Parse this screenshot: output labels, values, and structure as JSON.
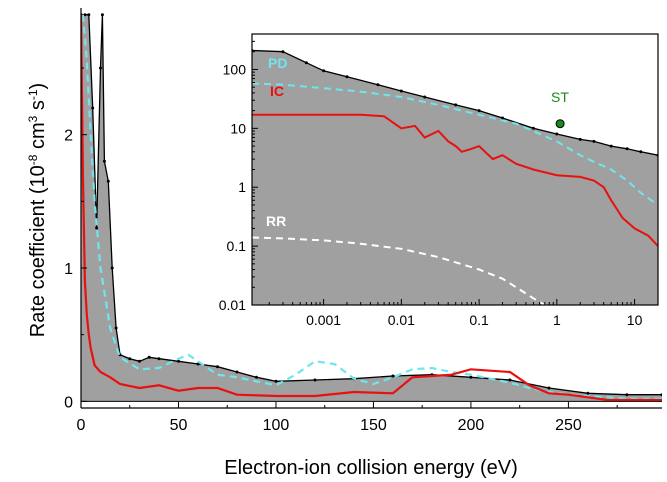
{
  "chart_data": [
    {
      "type": "line",
      "title": "",
      "xlabel": "Electron-ion collision energy (eV)",
      "ylabel": "Rate coefficient (10^-8 cm^3 s^-1)",
      "ylabel_parts": {
        "main": "Rate coefficient (10",
        "exp1": "-8",
        "mid1": " cm",
        "exp2": "3",
        "mid2": " s",
        "exp3": "-1",
        "end": ")"
      },
      "xlim": [
        0,
        298
      ],
      "ylim": [
        -0.05,
        2.95
      ],
      "x_ticks": [
        0,
        50,
        100,
        150,
        200,
        250
      ],
      "x_tick_labels": [
        "0",
        "50",
        "100",
        "150",
        "200",
        "250"
      ],
      "y_ticks": [
        0,
        1,
        2
      ],
      "y_tick_labels": [
        "0",
        "1",
        "2"
      ],
      "series": [
        {
          "role": "experiment",
          "style": "black line with markers, filled gray",
          "color": "#000000",
          "fill": "#a0a0a0",
          "x": [
            0,
            2,
            4,
            6,
            8,
            10,
            11,
            12,
            14,
            16,
            18,
            20,
            25,
            30,
            35,
            40,
            50,
            60,
            70,
            80,
            90,
            100,
            120,
            140,
            160,
            180,
            200,
            220,
            240,
            260,
            280,
            298
          ],
          "y": [
            2.9,
            2.9,
            2.9,
            2.2,
            1.3,
            2.5,
            2.9,
            1.8,
            1.65,
            1.0,
            0.55,
            0.35,
            0.32,
            0.3,
            0.33,
            0.32,
            0.3,
            0.28,
            0.26,
            0.22,
            0.18,
            0.15,
            0.16,
            0.17,
            0.19,
            0.2,
            0.18,
            0.16,
            0.1,
            0.06,
            0.05,
            0.05
          ]
        },
        {
          "name": "PD",
          "style": "dashed",
          "color": "#6ee6ee",
          "x": [
            1,
            3,
            5,
            7,
            10,
            15,
            20,
            30,
            40,
            50,
            55,
            60,
            70,
            80,
            90,
            100,
            110,
            120,
            130,
            140,
            150,
            160,
            170,
            180,
            190,
            200,
            210,
            220,
            230,
            240,
            250,
            260,
            270,
            280,
            298
          ],
          "y": [
            2.9,
            2.55,
            2.0,
            1.5,
            1.0,
            0.55,
            0.33,
            0.24,
            0.25,
            0.32,
            0.35,
            0.3,
            0.2,
            0.18,
            0.15,
            0.12,
            0.2,
            0.3,
            0.28,
            0.17,
            0.13,
            0.18,
            0.24,
            0.25,
            0.22,
            0.2,
            0.17,
            0.14,
            0.1,
            0.07,
            0.05,
            0.04,
            0.03,
            0.02,
            0.02
          ]
        },
        {
          "name": "IC",
          "style": "solid",
          "color": "#e81010",
          "x": [
            0,
            1,
            2,
            3,
            4,
            5,
            7,
            10,
            15,
            20,
            30,
            40,
            50,
            60,
            70,
            80,
            100,
            120,
            140,
            160,
            170,
            180,
            190,
            200,
            210,
            220,
            230,
            240,
            250,
            260,
            270,
            280,
            298
          ],
          "y": [
            2.9,
            1.7,
            0.9,
            0.65,
            0.5,
            0.4,
            0.27,
            0.22,
            0.18,
            0.13,
            0.1,
            0.12,
            0.08,
            0.1,
            0.1,
            0.05,
            0.04,
            0.04,
            0.07,
            0.06,
            0.18,
            0.19,
            0.2,
            0.24,
            0.23,
            0.22,
            0.12,
            0.06,
            0.05,
            0.03,
            0.01,
            0.01,
            0.01
          ]
        }
      ]
    },
    {
      "type": "line",
      "title": "",
      "xlabel": "",
      "ylabel": "",
      "x_scale": "log",
      "y_scale": "log",
      "xlim": [
        0.00012,
        20
      ],
      "ylim": [
        0.01,
        400
      ],
      "x_ticks": [
        0.001,
        0.01,
        0.1,
        1,
        10
      ],
      "x_tick_labels": [
        "0.001",
        "0.01",
        "0.1",
        "1",
        "10"
      ],
      "y_ticks": [
        0.01,
        0.1,
        1,
        10,
        100
      ],
      "y_tick_labels": [
        "0.01",
        "0.1",
        "1",
        "10",
        "100"
      ],
      "series": [
        {
          "role": "experiment",
          "style": "black line with markers, filled gray",
          "color": "#000000",
          "fill": "#a0a0a0",
          "x": [
            0.00012,
            0.0003,
            0.0006,
            0.001,
            0.002,
            0.005,
            0.01,
            0.02,
            0.05,
            0.1,
            0.2,
            0.5,
            1,
            2,
            3,
            5,
            8,
            12,
            20
          ],
          "y": [
            210,
            200,
            130,
            95,
            75,
            55,
            43,
            34,
            25,
            20,
            15,
            10,
            8,
            6.5,
            6,
            5,
            4.5,
            4,
            3.5
          ]
        },
        {
          "name": "PD",
          "style": "dashed",
          "color": "#6ee6ee",
          "x": [
            0.00012,
            0.0003,
            0.001,
            0.003,
            0.01,
            0.03,
            0.1,
            0.3,
            1,
            2,
            3,
            5,
            8,
            12,
            20
          ],
          "y": [
            58,
            55,
            48,
            42,
            34,
            25,
            17,
            12,
            6,
            3.5,
            2.7,
            2,
            1.3,
            0.8,
            0.5
          ]
        },
        {
          "name": "IC",
          "style": "solid",
          "color": "#e81010",
          "x": [
            0.00012,
            0.0005,
            0.001,
            0.003,
            0.006,
            0.01,
            0.015,
            0.02,
            0.03,
            0.04,
            0.05,
            0.06,
            0.08,
            0.1,
            0.15,
            0.2,
            0.3,
            0.5,
            1,
            2,
            3,
            4,
            5,
            7,
            10,
            15,
            20
          ],
          "y": [
            17,
            17,
            17,
            17,
            16,
            10,
            11,
            7,
            9,
            6,
            5,
            4,
            4.5,
            5,
            3,
            3.5,
            2.5,
            2,
            1.6,
            1.5,
            1.3,
            1.0,
            0.6,
            0.3,
            0.2,
            0.15,
            0.1
          ]
        },
        {
          "name": "RR",
          "style": "dashed",
          "color": "#ffffff",
          "x": [
            0.00012,
            0.0003,
            0.001,
            0.003,
            0.01,
            0.03,
            0.1,
            0.2,
            0.3,
            0.5,
            0.8
          ],
          "y": [
            0.14,
            0.135,
            0.125,
            0.11,
            0.09,
            0.065,
            0.04,
            0.028,
            0.02,
            0.013,
            0.009
          ]
        }
      ],
      "points": [
        {
          "name": "ST",
          "x": 1.1,
          "y": 12,
          "color": "#1a8a1a"
        }
      ]
    }
  ]
}
